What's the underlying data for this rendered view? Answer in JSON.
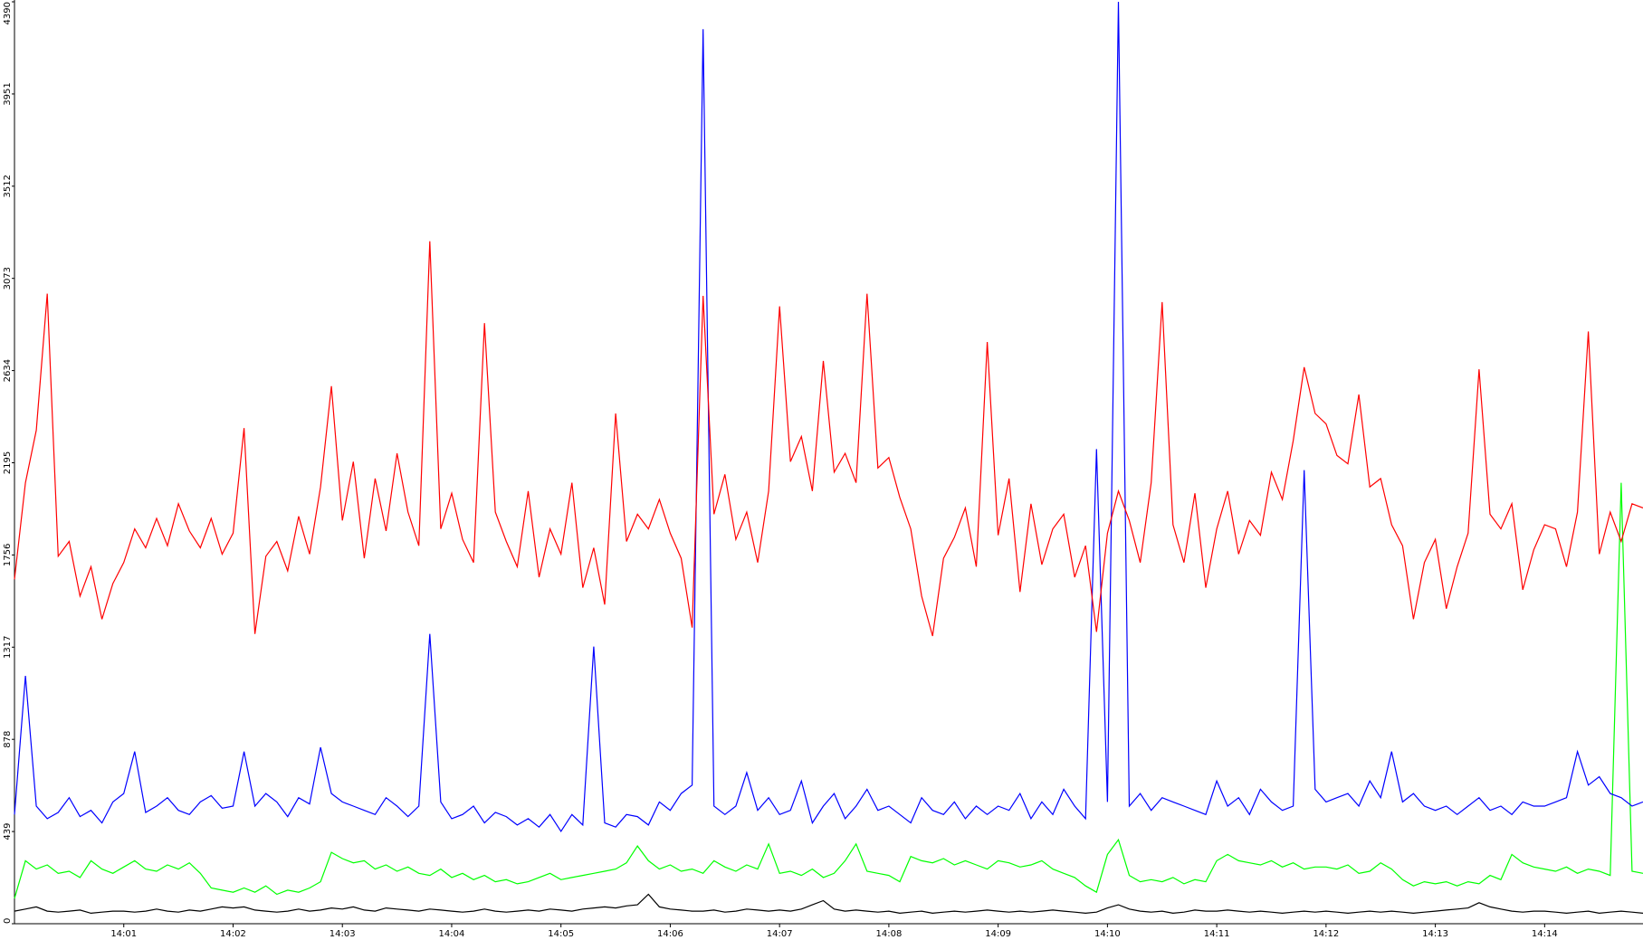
{
  "chart_data": {
    "type": "line",
    "categories": [
      null,
      null,
      null,
      null,
      null,
      null,
      null,
      null,
      null,
      null,
      "14:01",
      null,
      null,
      null,
      null,
      null,
      null,
      null,
      null,
      null,
      "14:02",
      null,
      null,
      null,
      null,
      null,
      null,
      null,
      null,
      null,
      "14:03",
      null,
      null,
      null,
      null,
      null,
      null,
      null,
      null,
      null,
      "14:04",
      null,
      null,
      null,
      null,
      null,
      null,
      null,
      null,
      null,
      "14:05",
      null,
      null,
      null,
      null,
      null,
      null,
      null,
      null,
      null,
      "14:06",
      null,
      null,
      null,
      null,
      null,
      null,
      null,
      null,
      null,
      "14:07",
      null,
      null,
      null,
      null,
      null,
      null,
      null,
      null,
      null,
      "14:08",
      null,
      null,
      null,
      null,
      null,
      null,
      null,
      null,
      null,
      "14:09",
      null,
      null,
      null,
      null,
      null,
      null,
      null,
      null,
      null,
      "14:10",
      null,
      null,
      null,
      null,
      null,
      null,
      null,
      null,
      null,
      "14:11",
      null,
      null,
      null,
      null,
      null,
      null,
      null,
      null,
      null,
      "14:12",
      null,
      null,
      null,
      null,
      null,
      null,
      null,
      null,
      null,
      "14:13",
      null,
      null,
      null,
      null,
      null,
      null,
      null,
      null,
      null,
      "14:14",
      null,
      null,
      null,
      null,
      null,
      null,
      null,
      null,
      null
    ],
    "series": [
      {
        "color": "#ff0000",
        "values": [
          1640,
          2100,
          2350,
          3000,
          1750,
          1820,
          1560,
          1700,
          1450,
          1620,
          1720,
          1880,
          1790,
          1930,
          1800,
          2000,
          1870,
          1790,
          1930,
          1760,
          1860,
          2360,
          1380,
          1750,
          1820,
          1680,
          1940,
          1760,
          2080,
          2560,
          1920,
          2200,
          1740,
          2120,
          1870,
          2240,
          1960,
          1800,
          3250,
          1880,
          2050,
          1830,
          1720,
          2860,
          1960,
          1820,
          1700,
          2060,
          1650,
          1880,
          1760,
          2100,
          1600,
          1790,
          1520,
          2430,
          1820,
          1950,
          1880,
          2020,
          1860,
          1740,
          1410,
          2990,
          1950,
          2140,
          1830,
          1960,
          1720,
          2060,
          2940,
          2200,
          2320,
          2060,
          2680,
          2150,
          2240,
          2100,
          3000,
          2170,
          2220,
          2030,
          1880,
          1560,
          1370,
          1740,
          1840,
          1980,
          1700,
          2770,
          1850,
          2120,
          1580,
          2000,
          1710,
          1880,
          1950,
          1650,
          1800,
          1390,
          1860,
          2060,
          1920,
          1720,
          2100,
          2960,
          1900,
          1720,
          2050,
          1600,
          1880,
          2060,
          1760,
          1920,
          1850,
          2150,
          2020,
          2300,
          2650,
          2430,
          2380,
          2230,
          2190,
          2520,
          2080,
          2120,
          1900,
          1800,
          1450,
          1720,
          1830,
          1500,
          1700,
          1860,
          2640,
          1950,
          1880,
          2000,
          1590,
          1780,
          1900,
          1880,
          1700,
          1960,
          2820,
          1760,
          1960,
          1820,
          2000,
          1980
        ]
      },
      {
        "color": "#0000ff",
        "values": [
          520,
          1180,
          560,
          500,
          530,
          600,
          510,
          540,
          480,
          580,
          620,
          820,
          530,
          560,
          600,
          540,
          520,
          580,
          610,
          550,
          560,
          820,
          560,
          620,
          580,
          510,
          600,
          570,
          840,
          620,
          580,
          560,
          540,
          520,
          600,
          560,
          510,
          560,
          1380,
          580,
          500,
          520,
          560,
          480,
          530,
          510,
          470,
          500,
          460,
          520,
          440,
          520,
          470,
          1320,
          480,
          460,
          520,
          510,
          470,
          580,
          540,
          620,
          660,
          4260,
          560,
          520,
          560,
          720,
          540,
          600,
          520,
          540,
          680,
          480,
          560,
          620,
          500,
          560,
          640,
          540,
          560,
          520,
          480,
          600,
          540,
          520,
          580,
          500,
          560,
          520,
          560,
          540,
          620,
          500,
          580,
          520,
          640,
          560,
          500,
          2260,
          580,
          4390,
          560,
          620,
          540,
          600,
          580,
          560,
          540,
          520,
          680,
          560,
          600,
          520,
          640,
          580,
          540,
          560,
          2160,
          640,
          580,
          600,
          620,
          560,
          680,
          600,
          820,
          580,
          620,
          560,
          540,
          560,
          520,
          560,
          600,
          540,
          560,
          520,
          580,
          560,
          560,
          580,
          600,
          820,
          660,
          700,
          620,
          600,
          560,
          580
        ]
      },
      {
        "color": "#00ff00",
        "values": [
          120,
          300,
          260,
          280,
          240,
          250,
          220,
          300,
          260,
          240,
          270,
          300,
          260,
          250,
          280,
          260,
          290,
          240,
          170,
          160,
          150,
          170,
          150,
          180,
          140,
          160,
          150,
          170,
          200,
          340,
          310,
          290,
          300,
          260,
          280,
          250,
          270,
          240,
          230,
          260,
          220,
          240,
          210,
          230,
          200,
          210,
          190,
          200,
          220,
          240,
          210,
          220,
          230,
          240,
          250,
          260,
          290,
          370,
          300,
          260,
          280,
          250,
          260,
          240,
          300,
          270,
          250,
          280,
          260,
          380,
          240,
          250,
          230,
          260,
          220,
          240,
          300,
          380,
          250,
          240,
          230,
          200,
          320,
          300,
          290,
          310,
          280,
          300,
          280,
          260,
          300,
          290,
          270,
          280,
          300,
          260,
          240,
          220,
          180,
          150,
          330,
          400,
          230,
          200,
          210,
          200,
          220,
          190,
          210,
          200,
          300,
          330,
          300,
          290,
          280,
          300,
          270,
          290,
          260,
          270,
          270,
          260,
          280,
          240,
          250,
          290,
          260,
          210,
          180,
          200,
          190,
          200,
          180,
          200,
          190,
          230,
          210,
          330,
          290,
          270,
          260,
          250,
          270,
          240,
          260,
          250,
          230,
          2100,
          250,
          240
        ]
      },
      {
        "color": "#000000",
        "values": [
          60,
          70,
          80,
          60,
          55,
          60,
          65,
          50,
          55,
          60,
          60,
          55,
          60,
          70,
          60,
          55,
          65,
          60,
          70,
          80,
          75,
          80,
          65,
          60,
          55,
          60,
          70,
          60,
          65,
          75,
          70,
          80,
          65,
          60,
          75,
          70,
          65,
          60,
          70,
          65,
          60,
          55,
          60,
          70,
          60,
          55,
          60,
          65,
          60,
          70,
          65,
          60,
          70,
          75,
          80,
          75,
          85,
          90,
          140,
          80,
          70,
          65,
          60,
          60,
          65,
          55,
          60,
          70,
          65,
          60,
          65,
          60,
          70,
          90,
          110,
          70,
          60,
          65,
          60,
          55,
          60,
          50,
          55,
          60,
          50,
          55,
          60,
          55,
          60,
          65,
          60,
          55,
          60,
          55,
          60,
          65,
          60,
          55,
          50,
          55,
          75,
          90,
          70,
          60,
          55,
          60,
          50,
          55,
          65,
          60,
          60,
          65,
          60,
          55,
          60,
          55,
          50,
          55,
          60,
          55,
          60,
          55,
          50,
          55,
          60,
          55,
          60,
          55,
          50,
          55,
          60,
          65,
          70,
          75,
          100,
          80,
          70,
          60,
          55,
          60,
          60,
          55,
          50,
          55,
          60,
          50,
          55,
          60,
          55,
          50
        ]
      }
    ],
    "ylim": [
      0,
      4390
    ],
    "yticks": [
      0,
      439,
      878,
      1317,
      1756,
      2195,
      2634,
      3073,
      3512,
      3951,
      4390
    ]
  }
}
